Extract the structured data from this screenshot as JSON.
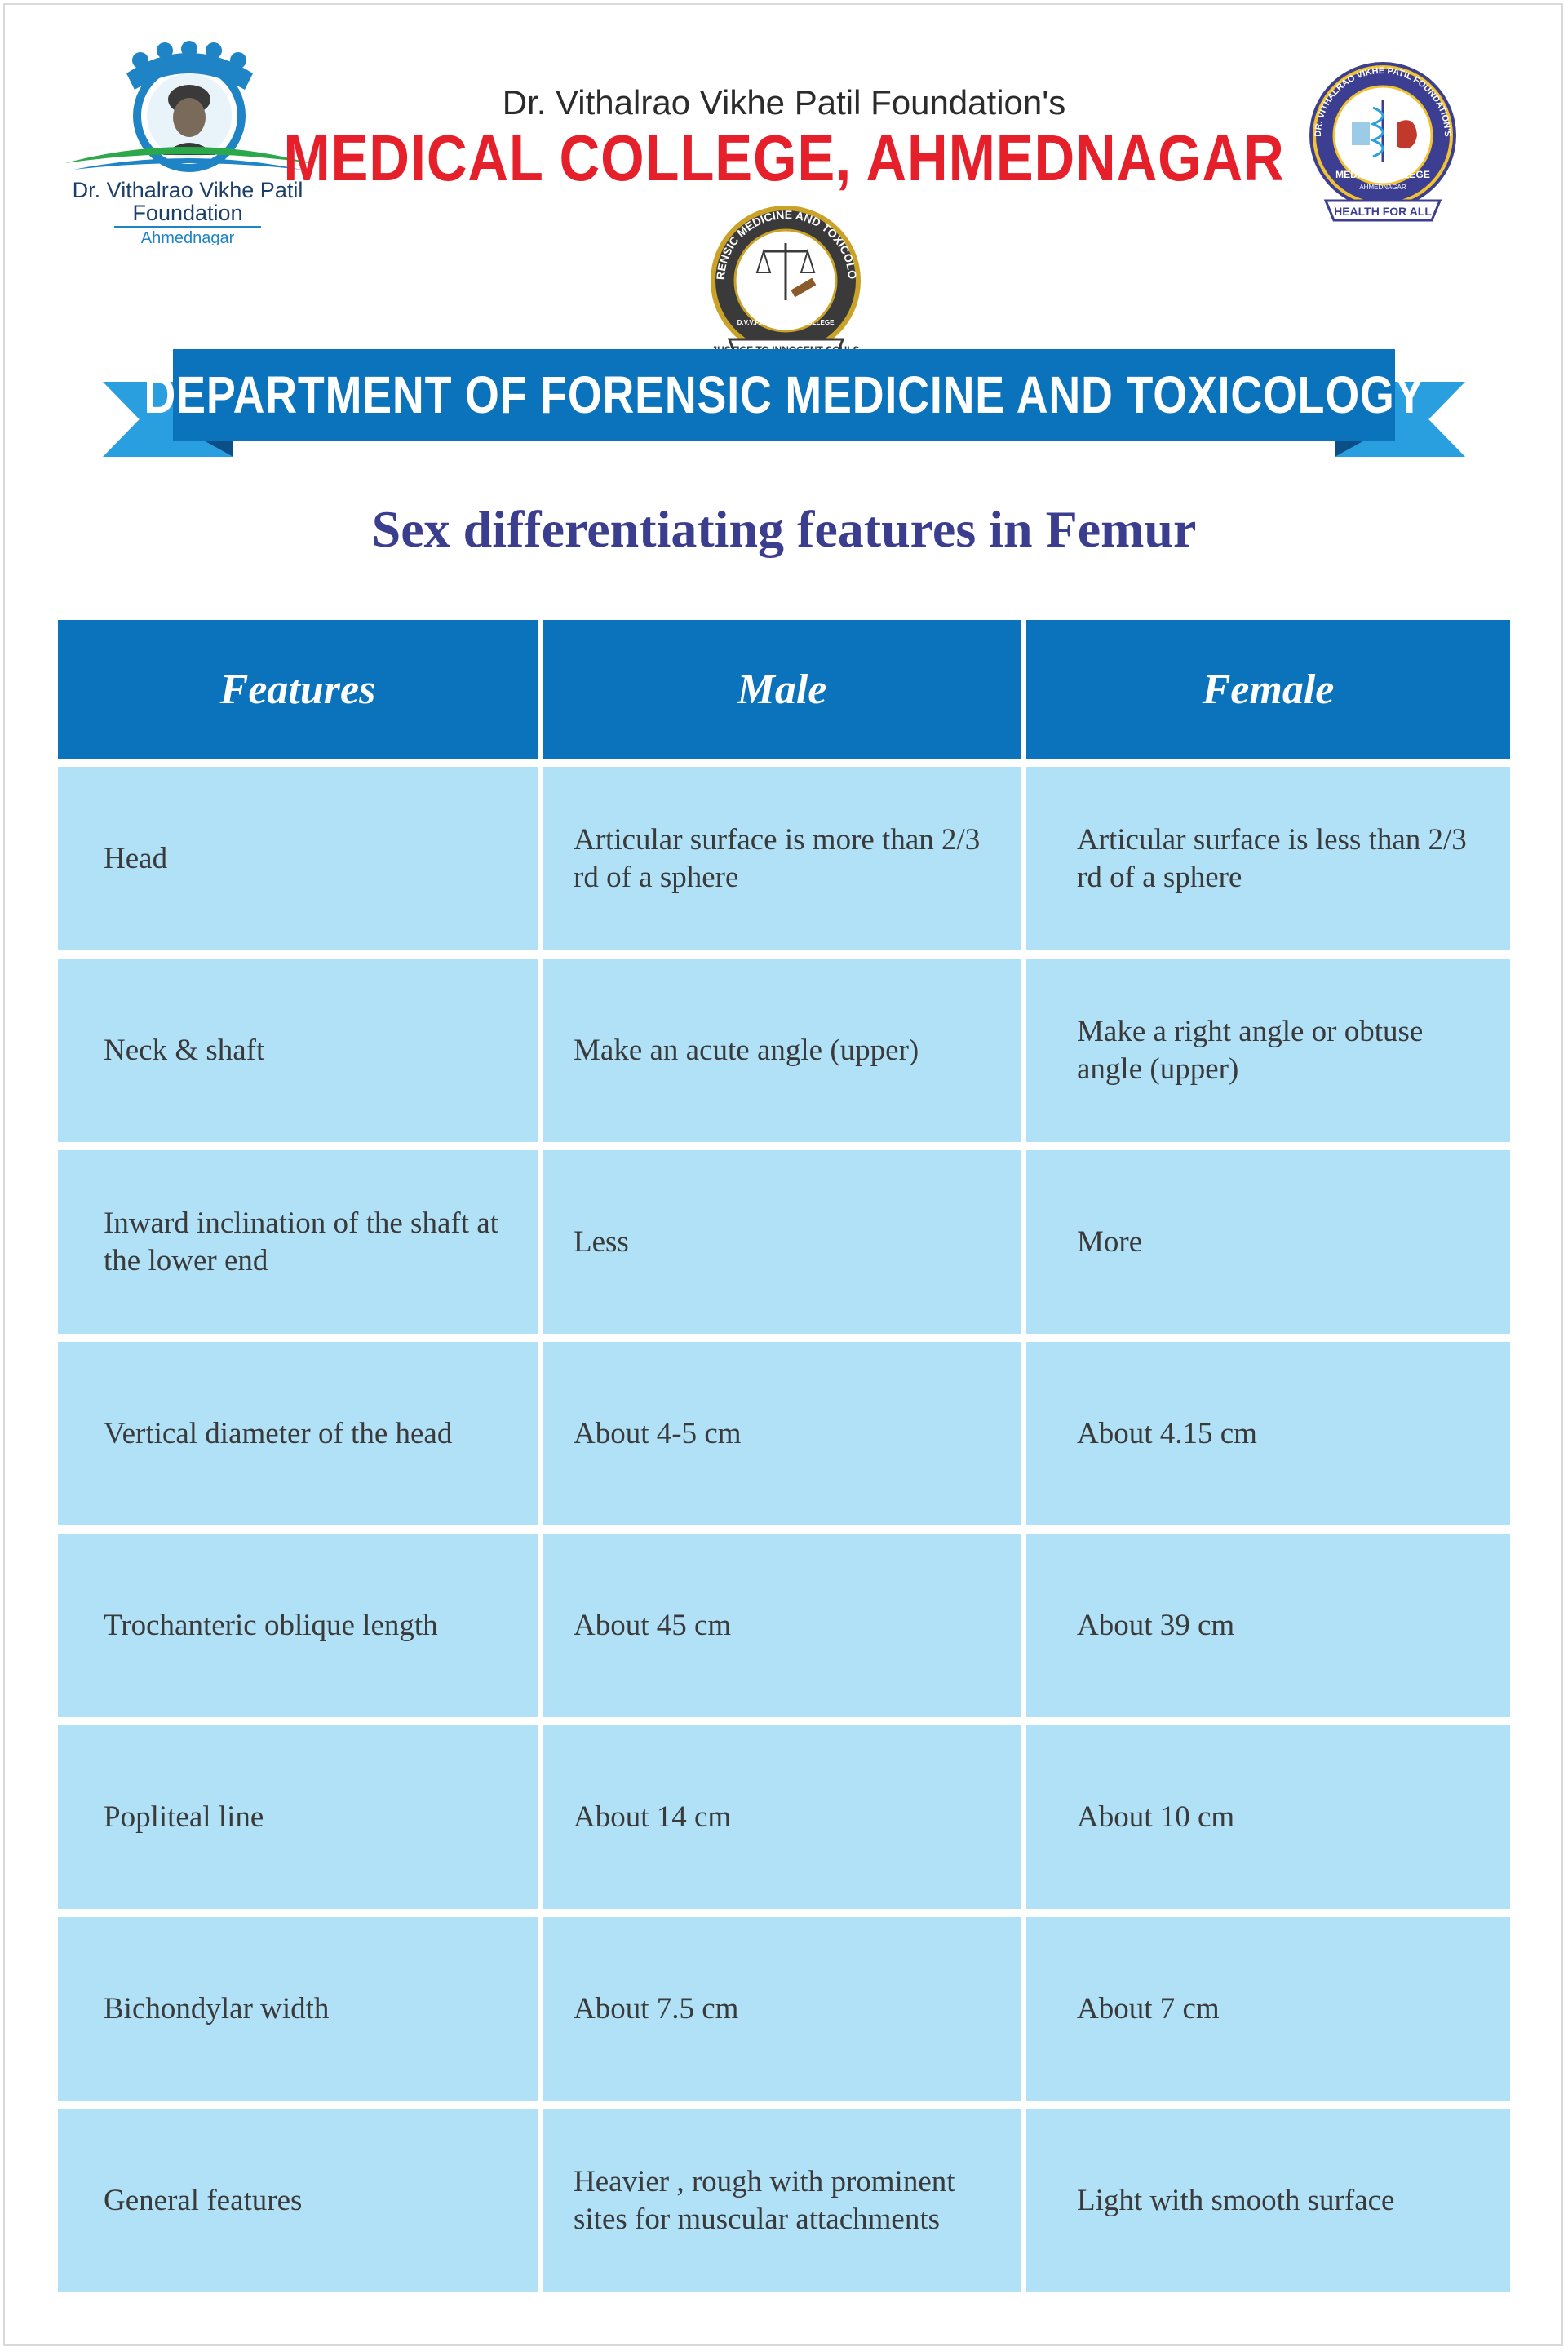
{
  "header": {
    "left_logo": {
      "name": "Dr. Vithalrao Vikhe Patil",
      "line2": "Foundation",
      "line3": "Ahmednagar"
    },
    "foundation_line": "Dr. Vithalrao Vikhe Patil Foundation's",
    "college_name": "MEDICAL COLLEGE, AHMEDNAGAR",
    "right_seal": {
      "ring_text": "DR. VITHALRAO VIKHE PATIL FOUNDATION'S",
      "inner": "MEDICAL COLLEGE",
      "place": "AHMEDNAGAR",
      "ribbon": "HEALTH FOR ALL"
    },
    "dept_seal": {
      "ring_text": "FORENSIC MEDICINE AND TOXICOLOGY",
      "inner": "D.V.V.P.F's MEDICAL COLLEGE",
      "ribbon": "JUSTICE TO INNOCENT SOULS"
    },
    "department_banner": "DEPARTMENT OF FORENSIC MEDICINE AND TOXICOLOGY",
    "subtitle": "Sex differentiating features in Femur"
  },
  "colors": {
    "primary_blue": "#0a73bc",
    "cell_blue": "#b1e1f7",
    "red": "#e6202a",
    "title_navy": "#3b3d8f"
  },
  "table": {
    "headers": [
      "Features",
      "Male",
      "Female"
    ],
    "rows": [
      [
        "Head",
        "Articular surface is more than 2/3 rd of a sphere",
        "Articular surface is less than 2/3 rd of a sphere"
      ],
      [
        "Neck & shaft",
        "Make an acute angle (upper)",
        "Make a right angle or obtuse angle (upper)"
      ],
      [
        "Inward inclination of the shaft at the lower end",
        "Less",
        "More"
      ],
      [
        "Vertical diameter of the head",
        "About 4-5 cm",
        "About 4.15 cm"
      ],
      [
        "Trochanteric oblique length",
        "About 45 cm",
        "About 39 cm"
      ],
      [
        "Popliteal line",
        "About 14 cm",
        "About  10 cm"
      ],
      [
        "Bichondylar width",
        "About 7.5 cm",
        "About 7 cm"
      ],
      [
        "General features",
        "Heavier , rough with prominent sites for muscular attachments",
        "Light with smooth surface"
      ]
    ]
  }
}
